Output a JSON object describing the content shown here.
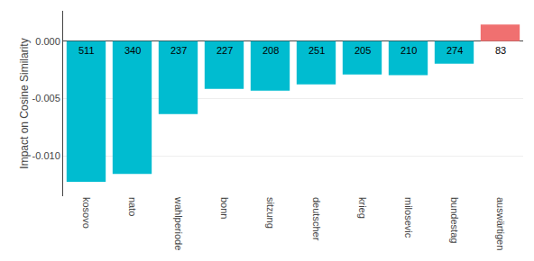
{
  "chart_data": {
    "type": "bar",
    "categories": [
      "kosovo",
      "nato",
      "wahlperiode",
      "bonn",
      "sitzung",
      "deutscher",
      "krieg",
      "milosevic",
      "bundestag",
      "auswärtigen"
    ],
    "values": [
      -0.01225,
      -0.01155,
      -0.00635,
      -0.00415,
      -0.0043,
      -0.00375,
      -0.0029,
      -0.00295,
      -0.00195,
      0.00145
    ],
    "counts": [
      511,
      340,
      237,
      227,
      208,
      251,
      205,
      210,
      274,
      83
    ],
    "colors": [
      "#00BCD0",
      "#00BCD0",
      "#00BCD0",
      "#00BCD0",
      "#00BCD0",
      "#00BCD0",
      "#00BCD0",
      "#00BCD0",
      "#00BCD0",
      "#F07070"
    ],
    "y_label": "Impact on Cosine Similarity",
    "ylim": [
      -0.0135,
      0.00265
    ],
    "yticks": [
      {
        "value": 0.0,
        "label": "0.000"
      },
      {
        "value": -0.005,
        "label": "-0.005"
      },
      {
        "value": -0.01,
        "label": "-0.010"
      }
    ],
    "grid": true
  }
}
